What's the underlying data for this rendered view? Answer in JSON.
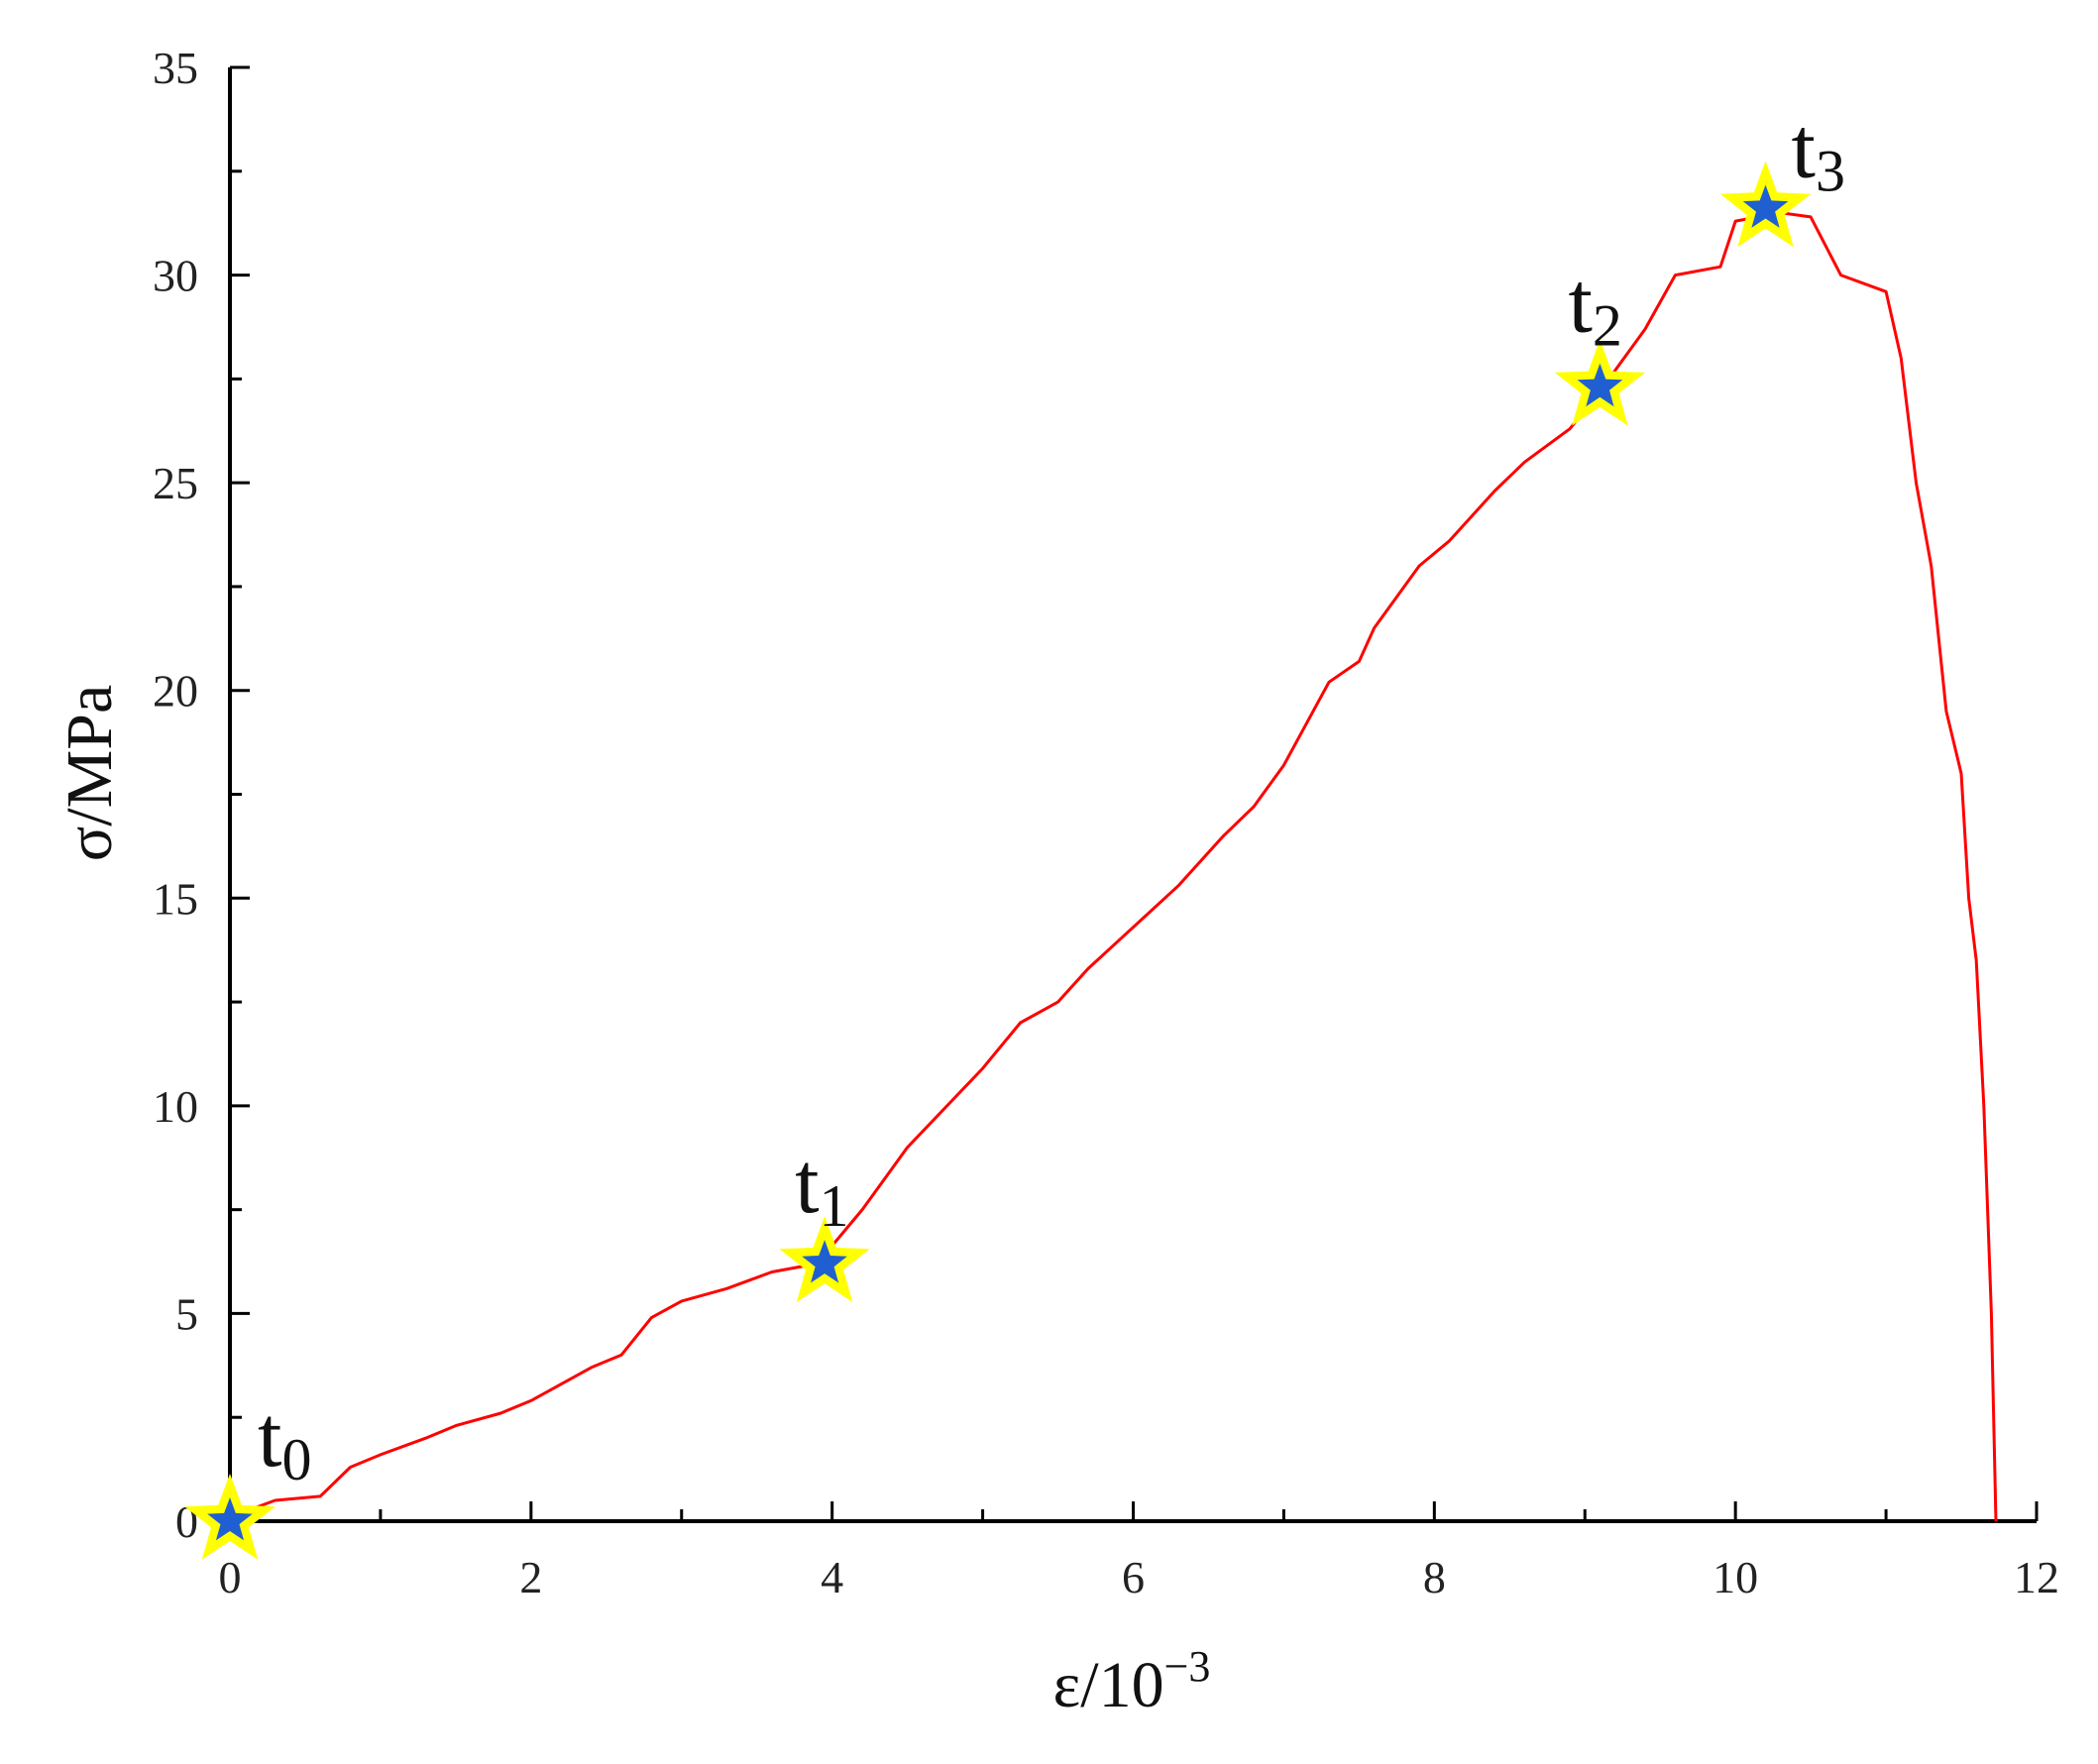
{
  "chart_data": {
    "type": "line",
    "xlabel": "ε/10",
    "xlabel_exponent": "−3",
    "ylabel": "σ/MPa",
    "xlim": [
      0,
      12
    ],
    "ylim": [
      0,
      35
    ],
    "x_ticks": [
      "0",
      "2",
      "4",
      "6",
      "8",
      "10",
      "12"
    ],
    "y_ticks": [
      "0",
      "5",
      "10",
      "15",
      "20",
      "25",
      "30",
      "35"
    ],
    "grid": false,
    "legend": "none",
    "colors": {
      "curve": "#ff0000",
      "star_outer": "#ffff00",
      "star_inner": "#1f5fd1",
      "axis": "#000000"
    },
    "series": [
      {
        "x": [
          0,
          0.3,
          0.6,
          0.8,
          1.0,
          1.3,
          1.5,
          1.8,
          2.0,
          2.2,
          2.4,
          2.6,
          2.8,
          3.0,
          3.3,
          3.6,
          3.9,
          4.2,
          4.5,
          5.0,
          5.25,
          5.5,
          5.7,
          6.0,
          6.3,
          6.6,
          6.8,
          7.0,
          7.3,
          7.5,
          7.6,
          7.9,
          8.1,
          8.4,
          8.6,
          8.9,
          9.1,
          9.4,
          9.6,
          9.9,
          10.0,
          10.3,
          10.5,
          10.7,
          11.0,
          11.1,
          11.2,
          11.3,
          11.4,
          11.5,
          11.55,
          11.6,
          11.65,
          11.7,
          11.73
        ],
        "y": [
          0.1,
          0.5,
          0.6,
          1.3,
          1.6,
          2.0,
          2.3,
          2.6,
          2.9,
          3.3,
          3.7,
          4.0,
          4.9,
          5.3,
          5.6,
          6.0,
          6.2,
          7.5,
          9.0,
          10.9,
          12.0,
          12.5,
          13.3,
          14.3,
          15.3,
          16.5,
          17.2,
          18.2,
          20.2,
          20.7,
          21.5,
          23.0,
          23.6,
          24.8,
          25.5,
          26.3,
          27.2,
          28.7,
          30.0,
          30.2,
          31.3,
          31.5,
          31.4,
          30.0,
          29.6,
          28.0,
          25.0,
          23.0,
          19.5,
          18.0,
          15.0,
          13.5,
          10.0,
          5.0,
          0.0
        ]
      }
    ],
    "markers": [
      {
        "label": "t",
        "sub": "0",
        "x": 0.0,
        "y": 0.0
      },
      {
        "label": "t",
        "sub": "1",
        "x": 3.95,
        "y": 6.2
      },
      {
        "label": "t",
        "sub": "2",
        "x": 9.1,
        "y": 27.3
      },
      {
        "label": "t",
        "sub": "3",
        "x": 10.2,
        "y": 31.6
      }
    ]
  }
}
